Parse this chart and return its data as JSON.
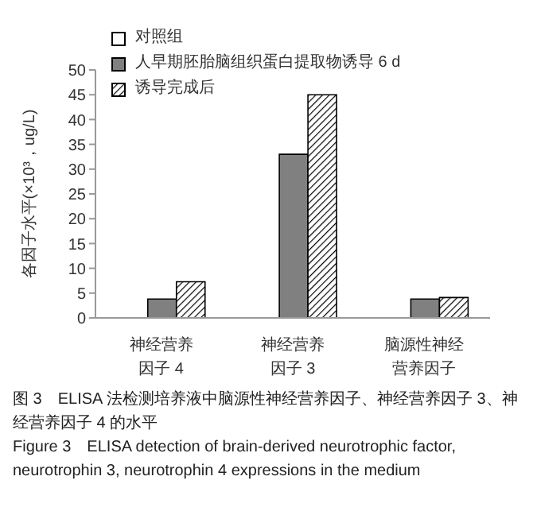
{
  "chart_data": {
    "type": "bar",
    "ylabel": "各因子水平(×10³，ug/L)",
    "categories": [
      "神经营养因子 4",
      "神经营养因子 3",
      "脑源性神经营养因子"
    ],
    "series": [
      {
        "name": "对照组",
        "color": "#ffffff",
        "values": [
          0,
          0,
          0
        ]
      },
      {
        "name": "人早期胚胎脑组织蛋白提取物诱导 6 d",
        "color": "#808080",
        "values": [
          3.8,
          33,
          3.8
        ]
      },
      {
        "name": "诱导完成后",
        "color": "#000000",
        "values": [
          7.3,
          45,
          4.1
        ]
      }
    ],
    "ylim": [
      0,
      50
    ],
    "yticks": [
      0,
      5,
      10,
      15,
      20,
      25,
      30,
      35,
      40,
      45,
      50
    ],
    "grid": false,
    "legend": "top left",
    "annotations": [
      "图 3　ELISA 法检测培养液中脑源性神经营养因子、神经营养因子 3、神经营养因子 4 的水平",
      "Figure 3　ELISA detection of brain-derived neurotrophic factor, neurotrophin 3, neurotrophin 4 expressions in the medium"
    ]
  }
}
